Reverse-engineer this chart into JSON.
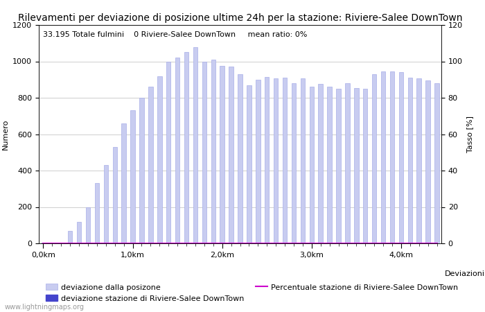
{
  "title": "Rilevamenti per deviazione di posizione ultime 24h per la stazione: Riviere-Salee DownTown",
  "subtitle": "33.195 Totale fulmini    0 Riviere-Salee DownTown     mean ratio: 0%",
  "xlabel": "Deviazioni",
  "ylabel_left": "Numero",
  "ylabel_right": "Tasso [%]",
  "watermark": "www.lightningmaps.org",
  "xtick_labels": [
    "0,0km",
    "1,0km",
    "2,0km",
    "3,0km",
    "4,0km"
  ],
  "xtick_positions": [
    0,
    10,
    20,
    30,
    40
  ],
  "ylim_left": [
    0,
    1200
  ],
  "ylim_right": [
    0,
    120
  ],
  "bar_values": [
    3,
    3,
    4,
    70,
    120,
    200,
    330,
    430,
    530,
    660,
    730,
    800,
    860,
    920,
    1000,
    1020,
    1050,
    1080,
    1000,
    1010,
    975,
    970,
    930,
    870,
    900,
    915,
    905,
    910,
    880,
    905,
    860,
    875,
    860,
    850,
    880,
    855,
    850,
    930,
    945,
    945,
    940,
    910,
    905,
    895,
    880
  ],
  "station_bar_values": [
    0,
    0,
    0,
    0,
    0,
    0,
    0,
    0,
    0,
    0,
    0,
    0,
    0,
    0,
    0,
    0,
    0,
    0,
    0,
    0,
    0,
    0,
    0,
    0,
    0,
    0,
    0,
    0,
    0,
    0,
    0,
    0,
    0,
    0,
    0,
    0,
    0,
    0,
    0,
    0,
    0,
    0,
    0,
    0,
    0
  ],
  "percentage_values": [
    0,
    0,
    0,
    0,
    0,
    0,
    0,
    0,
    0,
    0,
    0,
    0,
    0,
    0,
    0,
    0,
    0,
    0,
    0,
    0,
    0,
    0,
    0,
    0,
    0,
    0,
    0,
    0,
    0,
    0,
    0,
    0,
    0,
    0,
    0,
    0,
    0,
    0,
    0,
    0,
    0,
    0,
    0,
    0,
    0
  ],
  "bar_color": "#c8ccf0",
  "bar_edge_color": "#a8aee8",
  "station_bar_color": "#4444cc",
  "line_color": "#cc00cc",
  "grid_color": "#bbbbbb",
  "background_color": "#ffffff",
  "title_fontsize": 10,
  "subtitle_fontsize": 8,
  "axis_fontsize": 8,
  "tick_fontsize": 8,
  "legend_fontsize": 8,
  "n_bars": 45,
  "bar_width": 0.5
}
